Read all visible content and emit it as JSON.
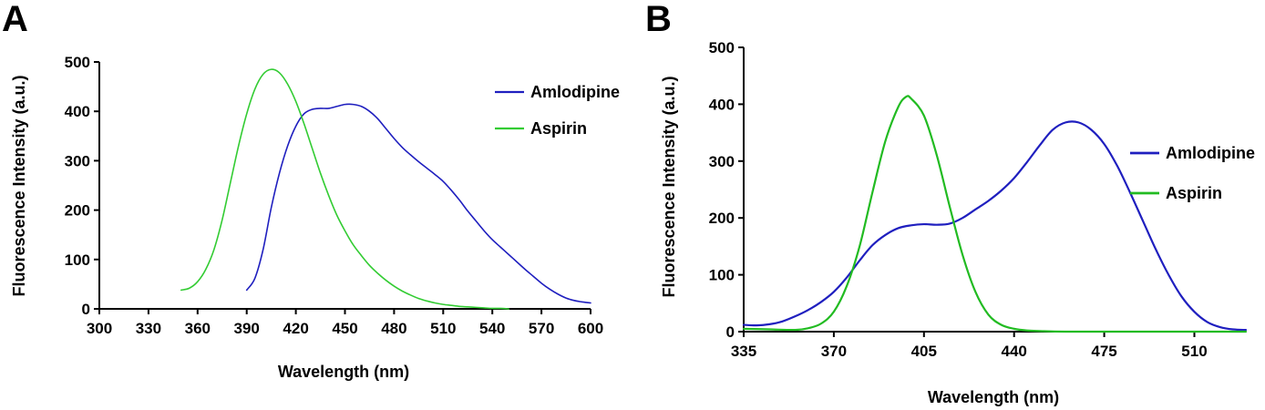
{
  "figure": {
    "panels": [
      {
        "letter": "A"
      },
      {
        "letter": "B"
      }
    ]
  },
  "chart_data": [
    {
      "panel": "A",
      "type": "line",
      "xlabel": "Wavelength (nm)",
      "ylabel": "Fluorescence Intensity (a.u.)",
      "xlim": [
        300,
        600
      ],
      "ylim": [
        0,
        500
      ],
      "xticks": [
        300,
        330,
        360,
        390,
        420,
        450,
        480,
        510,
        540,
        570,
        600
      ],
      "yticks": [
        0,
        100,
        200,
        300,
        400,
        500
      ],
      "grid": false,
      "legend_position": "top-right",
      "series": [
        {
          "name": "Amlodipine",
          "color": "#1f1fbf",
          "points": [
            [
              390,
              38
            ],
            [
              395,
              62
            ],
            [
              400,
              120
            ],
            [
              405,
              205
            ],
            [
              410,
              275
            ],
            [
              415,
              330
            ],
            [
              420,
              370
            ],
            [
              425,
              395
            ],
            [
              430,
              404
            ],
            [
              435,
              406
            ],
            [
              440,
              406
            ],
            [
              445,
              410
            ],
            [
              450,
              414
            ],
            [
              455,
              414
            ],
            [
              460,
              410
            ],
            [
              465,
              400
            ],
            [
              470,
              385
            ],
            [
              475,
              365
            ],
            [
              480,
              345
            ],
            [
              485,
              327
            ],
            [
              490,
              312
            ],
            [
              495,
              298
            ],
            [
              500,
              285
            ],
            [
              505,
              272
            ],
            [
              510,
              258
            ],
            [
              515,
              240
            ],
            [
              520,
              220
            ],
            [
              525,
              198
            ],
            [
              530,
              178
            ],
            [
              535,
              158
            ],
            [
              540,
              140
            ],
            [
              545,
              125
            ],
            [
              550,
              110
            ],
            [
              555,
              95
            ],
            [
              560,
              80
            ],
            [
              565,
              66
            ],
            [
              570,
              52
            ],
            [
              575,
              40
            ],
            [
              580,
              30
            ],
            [
              585,
              22
            ],
            [
              590,
              17
            ],
            [
              595,
              14
            ],
            [
              600,
              12
            ]
          ]
        },
        {
          "name": "Aspirin",
          "color": "#33cc33",
          "points": [
            [
              350,
              38
            ],
            [
              355,
              42
            ],
            [
              360,
              55
            ],
            [
              365,
              80
            ],
            [
              370,
              120
            ],
            [
              375,
              180
            ],
            [
              380,
              255
            ],
            [
              385,
              330
            ],
            [
              390,
              395
            ],
            [
              395,
              445
            ],
            [
              400,
              475
            ],
            [
              405,
              485
            ],
            [
              410,
              478
            ],
            [
              415,
              455
            ],
            [
              420,
              420
            ],
            [
              425,
              375
            ],
            [
              430,
              325
            ],
            [
              435,
              275
            ],
            [
              440,
              230
            ],
            [
              445,
              190
            ],
            [
              450,
              158
            ],
            [
              455,
              130
            ],
            [
              460,
              108
            ],
            [
              465,
              88
            ],
            [
              470,
              72
            ],
            [
              475,
              58
            ],
            [
              480,
              46
            ],
            [
              485,
              36
            ],
            [
              490,
              28
            ],
            [
              495,
              21
            ],
            [
              500,
              16
            ],
            [
              505,
              12
            ],
            [
              510,
              9
            ],
            [
              515,
              7
            ],
            [
              520,
              5
            ],
            [
              525,
              4
            ],
            [
              530,
              3
            ],
            [
              535,
              2
            ],
            [
              540,
              1
            ],
            [
              545,
              1
            ],
            [
              550,
              0
            ]
          ]
        }
      ]
    },
    {
      "panel": "B",
      "type": "line",
      "xlabel": "Wavelength (nm)",
      "ylabel": "Fluorescence Intensity (a.u.)",
      "xlim": [
        335,
        530
      ],
      "ylim": [
        0,
        500
      ],
      "xticks": [
        335,
        370,
        405,
        440,
        475,
        510
      ],
      "yticks": [
        0,
        100,
        200,
        300,
        400,
        500
      ],
      "grid": false,
      "legend_position": "right",
      "series": [
        {
          "name": "Amlodipine",
          "color": "#1f1fbf",
          "points": [
            [
              335,
              12
            ],
            [
              340,
              11
            ],
            [
              345,
              13
            ],
            [
              350,
              18
            ],
            [
              355,
              27
            ],
            [
              360,
              38
            ],
            [
              365,
              52
            ],
            [
              370,
              70
            ],
            [
              375,
              95
            ],
            [
              380,
              125
            ],
            [
              385,
              152
            ],
            [
              390,
              170
            ],
            [
              395,
              182
            ],
            [
              400,
              187
            ],
            [
              405,
              189
            ],
            [
              410,
              188
            ],
            [
              415,
              190
            ],
            [
              420,
              200
            ],
            [
              425,
              215
            ],
            [
              430,
              230
            ],
            [
              435,
              248
            ],
            [
              440,
              270
            ],
            [
              445,
              298
            ],
            [
              450,
              328
            ],
            [
              455,
              355
            ],
            [
              460,
              368
            ],
            [
              465,
              368
            ],
            [
              470,
              355
            ],
            [
              475,
              330
            ],
            [
              480,
              292
            ],
            [
              485,
              245
            ],
            [
              490,
              195
            ],
            [
              495,
              145
            ],
            [
              500,
              100
            ],
            [
              505,
              62
            ],
            [
              510,
              35
            ],
            [
              515,
              17
            ],
            [
              520,
              8
            ],
            [
              525,
              4
            ],
            [
              530,
              3
            ]
          ]
        },
        {
          "name": "Aspirin",
          "color": "#22bb22",
          "points": [
            [
              335,
              5
            ],
            [
              345,
              4
            ],
            [
              355,
              3
            ],
            [
              360,
              6
            ],
            [
              365,
              14
            ],
            [
              370,
              35
            ],
            [
              375,
              80
            ],
            [
              380,
              150
            ],
            [
              385,
              245
            ],
            [
              390,
              335
            ],
            [
              395,
              395
            ],
            [
              398,
              413
            ],
            [
              400,
              410
            ],
            [
              405,
              380
            ],
            [
              410,
              310
            ],
            [
              415,
              220
            ],
            [
              420,
              135
            ],
            [
              425,
              70
            ],
            [
              430,
              30
            ],
            [
              435,
              12
            ],
            [
              440,
              5
            ],
            [
              445,
              2
            ],
            [
              450,
              1
            ],
            [
              460,
              0
            ],
            [
              480,
              0
            ],
            [
              500,
              0
            ],
            [
              530,
              0
            ]
          ]
        }
      ]
    }
  ]
}
